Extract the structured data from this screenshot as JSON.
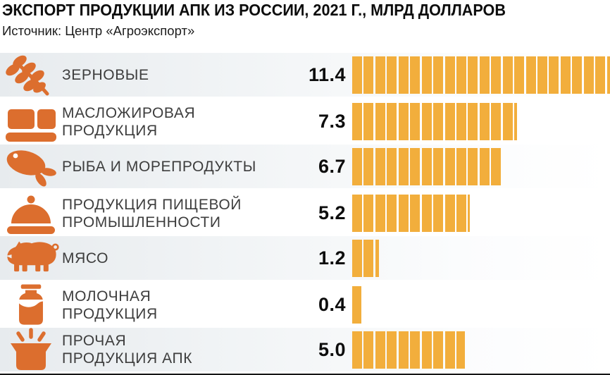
{
  "header": {
    "title": "ЭКСПОРТ ПРОДУКЦИИ АПК ИЗ РОССИИ, 2021 Г., МЛРД ДОЛЛАРОВ",
    "source": "Источник: Центр «Агроэкспорт»"
  },
  "colors": {
    "bar_segment": "#F2AE3C",
    "icon_orange": "#DC6E2E",
    "row_stripe": "#E7EBEE",
    "title_text": "#0D0D0D",
    "label_text": "#3D3D3D",
    "value_text": "#0D0D0D",
    "snout_notch": "#E9EDF0"
  },
  "chart_data": {
    "type": "bar",
    "orientation": "horizontal",
    "title": "ЭКСПОРТ ПРОДУКЦИИ АПК ИЗ РОССИИ, 2021 Г., МЛРД ДОЛЛАРОВ",
    "subtitle": "Источник: Центр «Агроэкспорт»",
    "unit": "млрд долларов",
    "year": "2021",
    "categories": [
      "ЗЕРНОВЫЕ",
      "МАСЛОЖИРОВАЯ ПРОДУКЦИЯ",
      "РЫБА И МОРЕПРОДУКТЫ",
      "ПРОДУКЦИЯ ПИЩЕВОЙ ПРОМЫШЛЕННОСТИ",
      "МЯСО",
      "МОЛОЧНАЯ ПРОДУКЦИЯ",
      "ПРОЧАЯ ПРОДУКЦИЯ АПК"
    ],
    "values": [
      11.4,
      7.3,
      6.7,
      5.2,
      1.2,
      0.4,
      5.0
    ],
    "value_labels": [
      "11.4",
      "7.3",
      "6.7",
      "5.2",
      "1.2",
      "0.4",
      "5.0"
    ],
    "xlim": [
      0,
      11.4
    ],
    "bar_style": "segmented, each segment ≈ 0.5 млрд",
    "legend": "none",
    "grid": "off"
  },
  "rows": [
    {
      "icon": "wheat-icon",
      "label_lines": [
        "ЗЕРНОВЫЕ"
      ],
      "value": "11.4"
    },
    {
      "icon": "butter-icon",
      "label_lines": [
        "МАСЛОЖИРОВАЯ",
        "ПРОДУКЦИЯ"
      ],
      "value": "7.3"
    },
    {
      "icon": "fish-icon",
      "label_lines": [
        "РЫБА И МОРЕПРОДУКТЫ"
      ],
      "value": "6.7"
    },
    {
      "icon": "cloche-icon",
      "label_lines": [
        "ПРОДУКЦИЯ ПИЩЕВОЙ",
        "ПРОМЫШЛЕННОСТИ"
      ],
      "value": "5.2"
    },
    {
      "icon": "pig-icon",
      "label_lines": [
        "МЯСО"
      ],
      "value": "1.2"
    },
    {
      "icon": "milk-bottle-icon",
      "label_lines": [
        "МОЛОЧНАЯ",
        "ПРОДУКЦИЯ"
      ],
      "value": "0.4"
    },
    {
      "icon": "pot-icon",
      "label_lines": [
        "ПРОЧАЯ",
        "ПРОДУКЦИЯ АПК"
      ],
      "value": "5.0"
    }
  ]
}
